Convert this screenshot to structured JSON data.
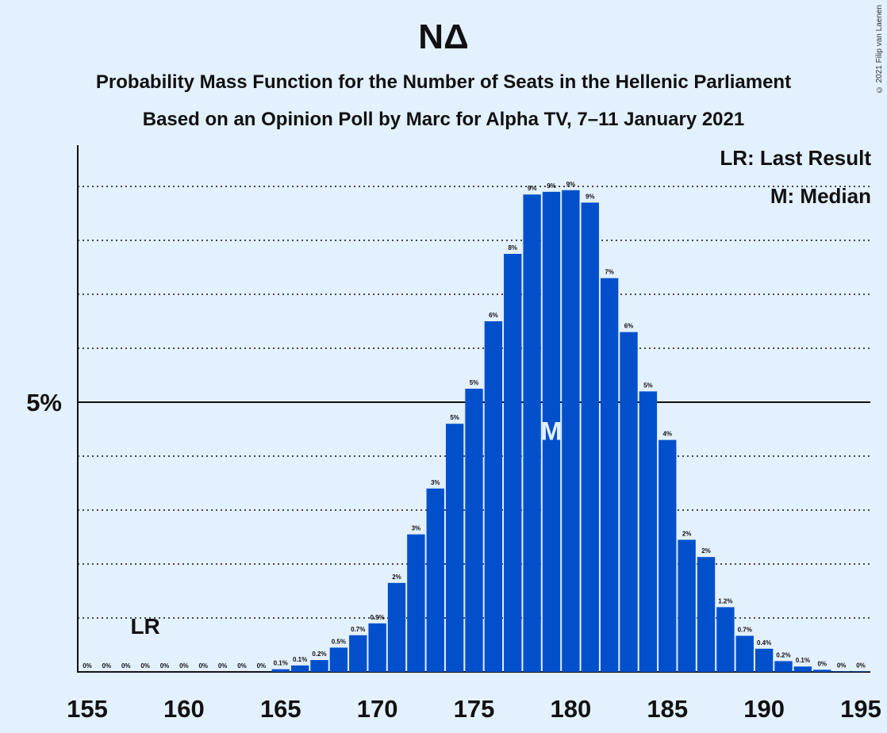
{
  "title": "NΔ",
  "subtitle1": "Probability Mass Function for the Number of Seats in the Hellenic Parliament",
  "subtitle2": "Based on an Opinion Poll by Marc for Alpha TV, 7–11 January 2021",
  "copyright": "© 2021 Filip van Laenen",
  "legend": {
    "lr": "LR: Last Result",
    "m": "M: Median"
  },
  "colors": {
    "bar": "#0050cc",
    "background": "#e3f0fd",
    "median_label": "#e3f0fd"
  },
  "chart_data": {
    "type": "bar",
    "x": [
      155,
      156,
      157,
      158,
      159,
      160,
      161,
      162,
      163,
      164,
      165,
      166,
      167,
      168,
      169,
      170,
      171,
      172,
      173,
      174,
      175,
      176,
      177,
      178,
      179,
      180,
      181,
      182,
      183,
      184,
      185,
      186,
      187,
      188,
      189,
      190,
      191,
      192,
      193,
      194,
      195
    ],
    "values": [
      0,
      0,
      0,
      0,
      0,
      0,
      0,
      0,
      0,
      0,
      0.05,
      0.12,
      0.22,
      0.45,
      0.68,
      0.9,
      1.65,
      2.55,
      3.4,
      4.6,
      5.25,
      6.5,
      7.75,
      8.85,
      8.9,
      8.93,
      8.7,
      7.3,
      6.3,
      5.2,
      4.3,
      2.45,
      2.13,
      1.2,
      0.67,
      0.43,
      0.2,
      0.1,
      0.04,
      0.01,
      0.01
    ],
    "labels": [
      "0%",
      "0%",
      "0%",
      "0%",
      "0%",
      "0%",
      "0%",
      "0%",
      "0%",
      "0%",
      "0.1%",
      "0.1%",
      "0.2%",
      "0.5%",
      "0.7%",
      "0.9%",
      "2%",
      "3%",
      "3%",
      "5%",
      "5%",
      "6%",
      "8%",
      "9%",
      "9%",
      "9%",
      "9%",
      "7%",
      "6%",
      "5%",
      "4%",
      "2%",
      "2%",
      "1.2%",
      "0.7%",
      "0.4%",
      "0.2%",
      "0.1%",
      "0%",
      "0%",
      "0%"
    ],
    "xticks": [
      155,
      160,
      165,
      170,
      175,
      180,
      185,
      190,
      195
    ],
    "ytick_label": "5%",
    "ytick_value": 5,
    "ylim": [
      0,
      9.75
    ],
    "minor_grid": [
      1,
      2,
      3,
      4,
      6,
      7,
      8,
      9
    ],
    "last_result": 158,
    "last_result_label": "LR",
    "median": 179,
    "median_label": "M"
  }
}
